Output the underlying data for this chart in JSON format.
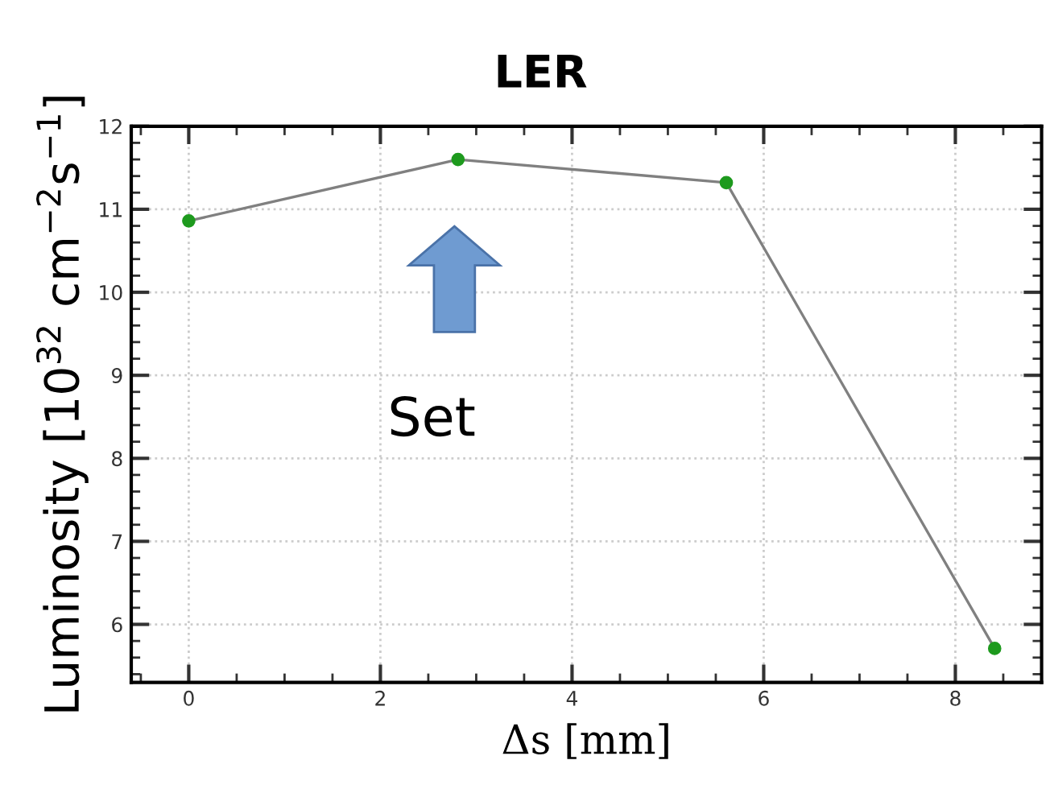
{
  "chart_data": {
    "type": "line",
    "title": "LER",
    "xlabel": "Δs [mm]",
    "ylabel": "Luminosity [10$^{32}$ cm$^{−2}$s$^{−1}$]",
    "x": [
      0,
      2.81,
      5.61,
      8.41
    ],
    "series": [
      {
        "color": "#808080",
        "values": [
          10.86,
          11.6,
          11.32,
          5.71
        ]
      }
    ],
    "marker": "circle",
    "line_style": "solid",
    "xlim": [
      -0.6,
      8.9
    ],
    "xticks": [
      0,
      2,
      4,
      6,
      8
    ],
    "ylim": [
      5.3,
      12
    ],
    "yticks": [
      6,
      7,
      8,
      9,
      10,
      11,
      12
    ],
    "grid": true,
    "legend": false,
    "annotations": [
      "Set"
    ]
  }
}
